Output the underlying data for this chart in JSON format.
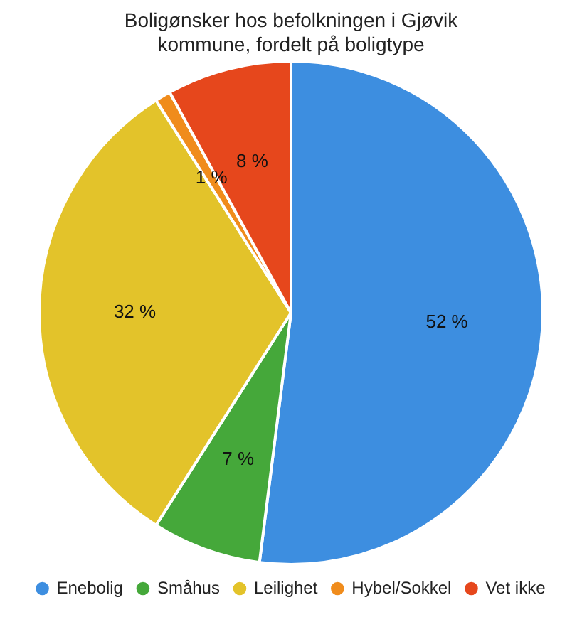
{
  "chart_data": {
    "type": "pie",
    "title": "Boligønsker hos befolkningen i Gjøvik kommune, fordelt på boligtype",
    "categories": [
      "Enebolig",
      "Småhus",
      "Leilighet",
      "Hybel/Sokkel",
      "Vet ikke"
    ],
    "values": [
      52,
      7,
      32,
      1,
      8
    ],
    "colors": [
      "#3d8ee0",
      "#45a83a",
      "#e3c32a",
      "#f08c1c",
      "#e6471c"
    ],
    "value_labels": [
      "52 %",
      "7 %",
      "32 %",
      "1 %",
      "8 %"
    ],
    "legend": "bottom"
  }
}
